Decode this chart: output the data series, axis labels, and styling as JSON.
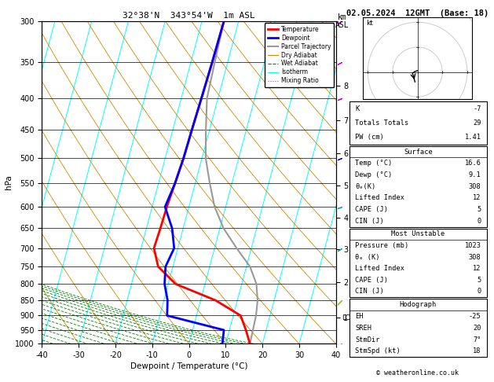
{
  "title_left": "32°38'N  343°54'W  1m ASL",
  "title_right": "02.05.2024  12GMT  (Base: 18)",
  "xlabel": "Dewpoint / Temperature (°C)",
  "pressure_levels": [
    300,
    350,
    400,
    450,
    500,
    550,
    600,
    650,
    700,
    750,
    800,
    850,
    900,
    950,
    1000
  ],
  "temp_x": [
    -14,
    -14.2,
    -14.5,
    -14.8,
    -15.0,
    -15.5,
    -16.0,
    -16.2,
    -16.5,
    -14,
    -8,
    4,
    12,
    14.5,
    16.6
  ],
  "temp_p": [
    300,
    350,
    400,
    450,
    500,
    550,
    600,
    650,
    700,
    750,
    800,
    850,
    900,
    950,
    1000
  ],
  "dewp_x": [
    -14,
    -14.2,
    -14.5,
    -14.8,
    -15.0,
    -15.5,
    -16.5,
    -13,
    -11,
    -12,
    -11,
    -9,
    -8,
    8.5,
    9.1
  ],
  "dewp_p": [
    300,
    350,
    400,
    450,
    500,
    550,
    600,
    650,
    700,
    750,
    800,
    850,
    900,
    950,
    1000
  ],
  "parcel_x": [
    -14,
    -13.5,
    -13,
    -11,
    -9,
    -6,
    -3,
    1,
    6,
    11,
    14,
    15.5,
    16.2,
    16.4,
    16.6
  ],
  "parcel_p": [
    300,
    350,
    400,
    450,
    500,
    550,
    600,
    650,
    700,
    750,
    800,
    850,
    900,
    950,
    1000
  ],
  "km_ticks": [
    1,
    2,
    3,
    4,
    5,
    6,
    7,
    8
  ],
  "km_pressures": [
    907,
    795,
    702,
    624,
    554,
    491,
    434,
    382
  ],
  "lcl_pressure": 907,
  "skew": 45.0,
  "table_data": {
    "K": "-7",
    "Totals Totals": "29",
    "PW (cm)": "1.41",
    "Surface_Temp": "16.6",
    "Surface_Dewp": "9.1",
    "Surface_theta_e": "308",
    "Surface_LI": "12",
    "Surface_CAPE": "5",
    "Surface_CIN": "0",
    "MU_Pressure": "1023",
    "MU_theta_e": "308",
    "MU_LI": "12",
    "MU_CAPE": "5",
    "MU_CIN": "0",
    "EH": "-25",
    "SREH": "20",
    "StmDir": "7°",
    "StmSpd": "18"
  },
  "wind_pressures": [
    300,
    350,
    400,
    500,
    600,
    700,
    850,
    1000
  ],
  "wind_colors": [
    "#cc00cc",
    "#cc00cc",
    "#cc00cc",
    "#0000cc",
    "#00aaaa",
    "#00aaaa",
    "#77cc00",
    "#77cc00"
  ],
  "wind_u": [
    15,
    15,
    15,
    12,
    8,
    5,
    5,
    5
  ],
  "wind_v": [
    10,
    8,
    6,
    5,
    3,
    3,
    5,
    3
  ]
}
